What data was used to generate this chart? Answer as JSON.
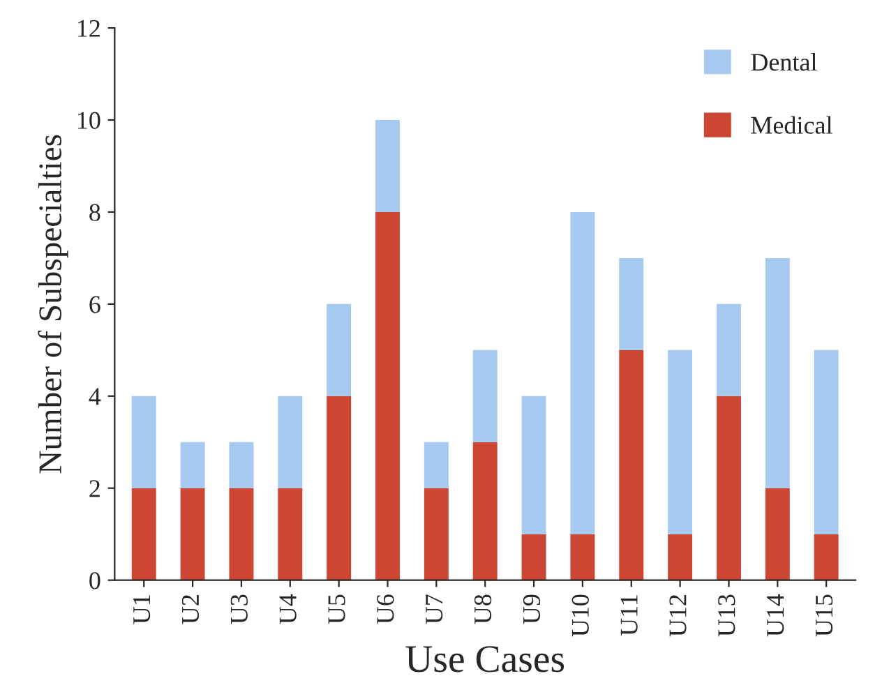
{
  "chart_data": {
    "type": "bar",
    "stacked": true,
    "xlabel": "Use Cases",
    "ylabel": "Number of Subspecialties",
    "categories": [
      "U1",
      "U2",
      "U3",
      "U4",
      "U5",
      "U6",
      "U7",
      "U8",
      "U9",
      "U10",
      "U11",
      "U12",
      "U13",
      "U14",
      "U15"
    ],
    "series": [
      {
        "name": "Medical",
        "color": "#cc4633",
        "values": [
          2,
          2,
          2,
          2,
          4,
          8,
          2,
          3,
          1,
          1,
          5,
          1,
          4,
          2,
          1
        ]
      },
      {
        "name": "Dental",
        "color": "#a6c9ef",
        "values": [
          2,
          1,
          1,
          2,
          2,
          2,
          1,
          2,
          3,
          7,
          2,
          4,
          2,
          5,
          4
        ]
      }
    ],
    "ylim": [
      0,
      12
    ],
    "yticks": [
      0,
      2,
      4,
      6,
      8,
      10,
      12
    ],
    "grid": false,
    "legend": "top right"
  }
}
